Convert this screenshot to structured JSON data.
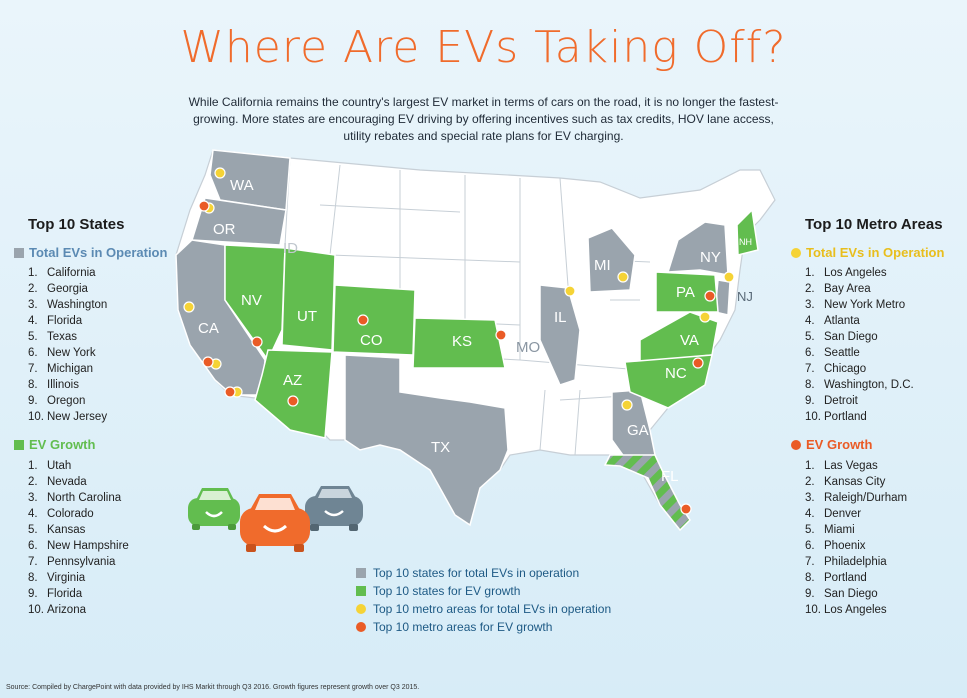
{
  "title": "Where Are EVs Taking Off?",
  "intro": "While California remains the country's largest EV market in terms of cars on the road, it is no longer the fastest-growing. More states are encouraging EV driving by offering incentives such as tax credits, HOV lane access, utility rebates and special rate plans for EV charging.",
  "colors": {
    "title_orange": "#f06b2c",
    "state_gray": "#9aa4ad",
    "state_green": "#62bd4f",
    "metro_yellow": "#f5d336",
    "metro_orange": "#ea5b26",
    "blue_head": "#5b8ab3"
  },
  "left": {
    "title": "Top 10 States",
    "total_head": "Total EVs in Operation",
    "total": [
      "California",
      "Georgia",
      "Washington",
      "Florida",
      "Texas",
      "New York",
      "Michigan",
      "Illinois",
      "Oregon",
      "New Jersey"
    ],
    "growth_head": "EV Growth",
    "growth": [
      "Utah",
      "Nevada",
      "North Carolina",
      "Colorado",
      "Kansas",
      "New Hampshire",
      "Pennsylvania",
      "Virginia",
      "Florida",
      "Arizona"
    ]
  },
  "right": {
    "title": "Top 10 Metro Areas",
    "total_head": "Total EVs in Operation",
    "total": [
      "Los Angeles",
      "Bay Area",
      "New York Metro",
      "Atlanta",
      "San Diego",
      "Seattle",
      "Chicago",
      "Washington, D.C.",
      "Detroit",
      "Portland"
    ],
    "growth_head": "EV Growth",
    "growth": [
      "Las Vegas",
      "Kansas City",
      "Raleigh/Durham",
      "Denver",
      "Miami",
      "Phoenix",
      "Philadelphia",
      "Portland",
      "San Diego",
      "Los Angeles"
    ]
  },
  "numbers": [
    "1.",
    "2.",
    "3.",
    "4.",
    "5.",
    "6.",
    "7.",
    "8.",
    "9.",
    "10."
  ],
  "state_labels": {
    "WA": "WA",
    "OR": "OR",
    "ID": "ID",
    "CA": "CA",
    "NV": "NV",
    "UT": "UT",
    "AZ": "AZ",
    "CO": "CO",
    "KS": "KS",
    "MO": "MO",
    "TX": "TX",
    "IL": "IL",
    "MI": "MI",
    "NY": "NY",
    "PA": "PA",
    "NJ": "NJ",
    "VA": "VA",
    "NC": "NC",
    "GA": "GA",
    "FL": "FL",
    "NH": "NH"
  },
  "legend": [
    {
      "label": "Top 10 states for total EVs in operation",
      "kind": "gray-square"
    },
    {
      "label": "Top 10 states for EV growth",
      "kind": "green-square"
    },
    {
      "label": "Top 10 metro areas for total EVs in operation",
      "kind": "yellow-dot"
    },
    {
      "label": "Top 10 metro areas for EV growth",
      "kind": "orange-dot"
    }
  ],
  "source": "Source: Compiled by ChargePoint with data provided by IHS Markit through Q3 2016. Growth figures represent growth over Q3 2015."
}
